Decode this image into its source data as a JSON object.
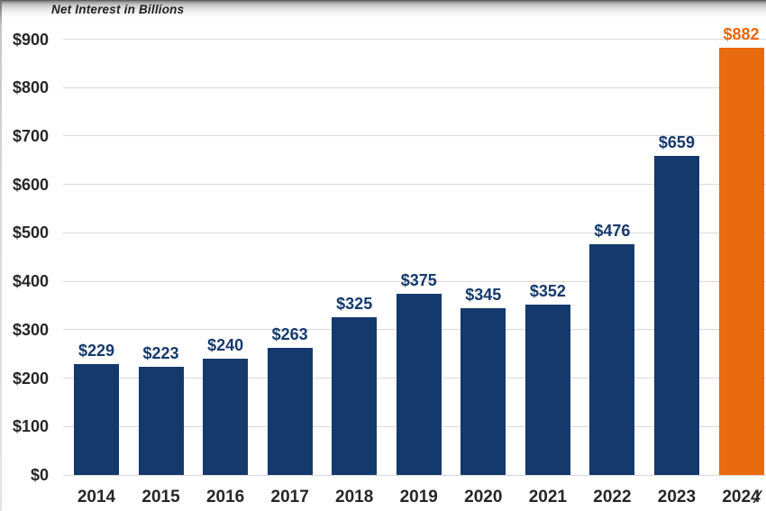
{
  "chart_data": {
    "type": "bar",
    "title": "Net Interest in Billions",
    "categories": [
      "2014",
      "2015",
      "2016",
      "2017",
      "2018",
      "2019",
      "2020",
      "2021",
      "2022",
      "2023",
      "2024"
    ],
    "values": [
      229,
      223,
      240,
      263,
      325,
      375,
      345,
      352,
      476,
      659,
      882
    ],
    "value_labels": [
      "$229",
      "$223",
      "$240",
      "$263",
      "$325",
      "$375",
      "$345",
      "$352",
      "$476",
      "$659",
      "$882"
    ],
    "highlight_index": 10,
    "x_axis_footnote_mark": "∕",
    "y_axis": {
      "range": [
        0,
        900
      ],
      "grid": true,
      "ticks": [
        {
          "label": "$0",
          "value": 0
        },
        {
          "label": "$100",
          "value": 100
        },
        {
          "label": "$200",
          "value": 200
        },
        {
          "label": "$300",
          "value": 300
        },
        {
          "label": "$400",
          "value": 400
        },
        {
          "label": "$500",
          "value": 500
        },
        {
          "label": "$600",
          "value": 600
        },
        {
          "label": "$700",
          "value": 700
        },
        {
          "label": "$800",
          "value": 800
        },
        {
          "label": "$900",
          "value": 900
        }
      ]
    },
    "legend_position": "none",
    "colors": {
      "bar": "#14396C",
      "highlight_bar": "#EA6A0E",
      "value_label": "#14396C",
      "highlight_value_label": "#E8660B",
      "axis_text": "#262626",
      "gridline": "#D9D9D9",
      "title_text": "#1F1F1F"
    }
  }
}
